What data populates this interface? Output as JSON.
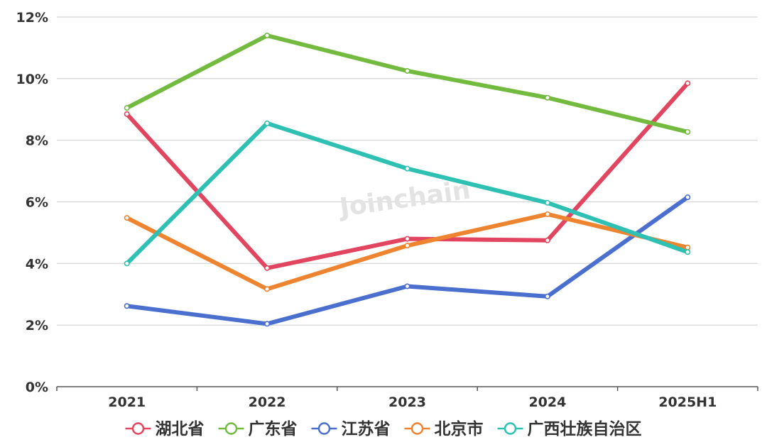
{
  "watermark": "Joinchain",
  "chart_data": {
    "type": "line",
    "categories": [
      "2021",
      "2022",
      "2023",
      "2024",
      "2025H1"
    ],
    "ylim": [
      0,
      12
    ],
    "yticks": [
      0,
      2,
      4,
      6,
      8,
      10,
      12
    ],
    "ytick_suffix": "%",
    "grid": true,
    "legend_position": "bottom",
    "series": [
      {
        "name": "湖北省",
        "color": "#e2455f",
        "values": [
          8.85,
          3.85,
          4.8,
          4.75,
          9.85
        ]
      },
      {
        "name": "广东省",
        "color": "#73bb3e",
        "values": [
          9.05,
          11.4,
          10.25,
          9.38,
          8.27
        ]
      },
      {
        "name": "江苏省",
        "color": "#4a6fcf",
        "values": [
          2.62,
          2.04,
          3.26,
          2.93,
          6.15
        ]
      },
      {
        "name": "北京市",
        "color": "#ee8430",
        "values": [
          5.48,
          3.17,
          4.58,
          5.6,
          4.52
        ]
      },
      {
        "name": "广西壮族自治区",
        "color": "#2ec0b3",
        "values": [
          4.0,
          8.55,
          7.08,
          5.97,
          4.37
        ]
      }
    ]
  }
}
